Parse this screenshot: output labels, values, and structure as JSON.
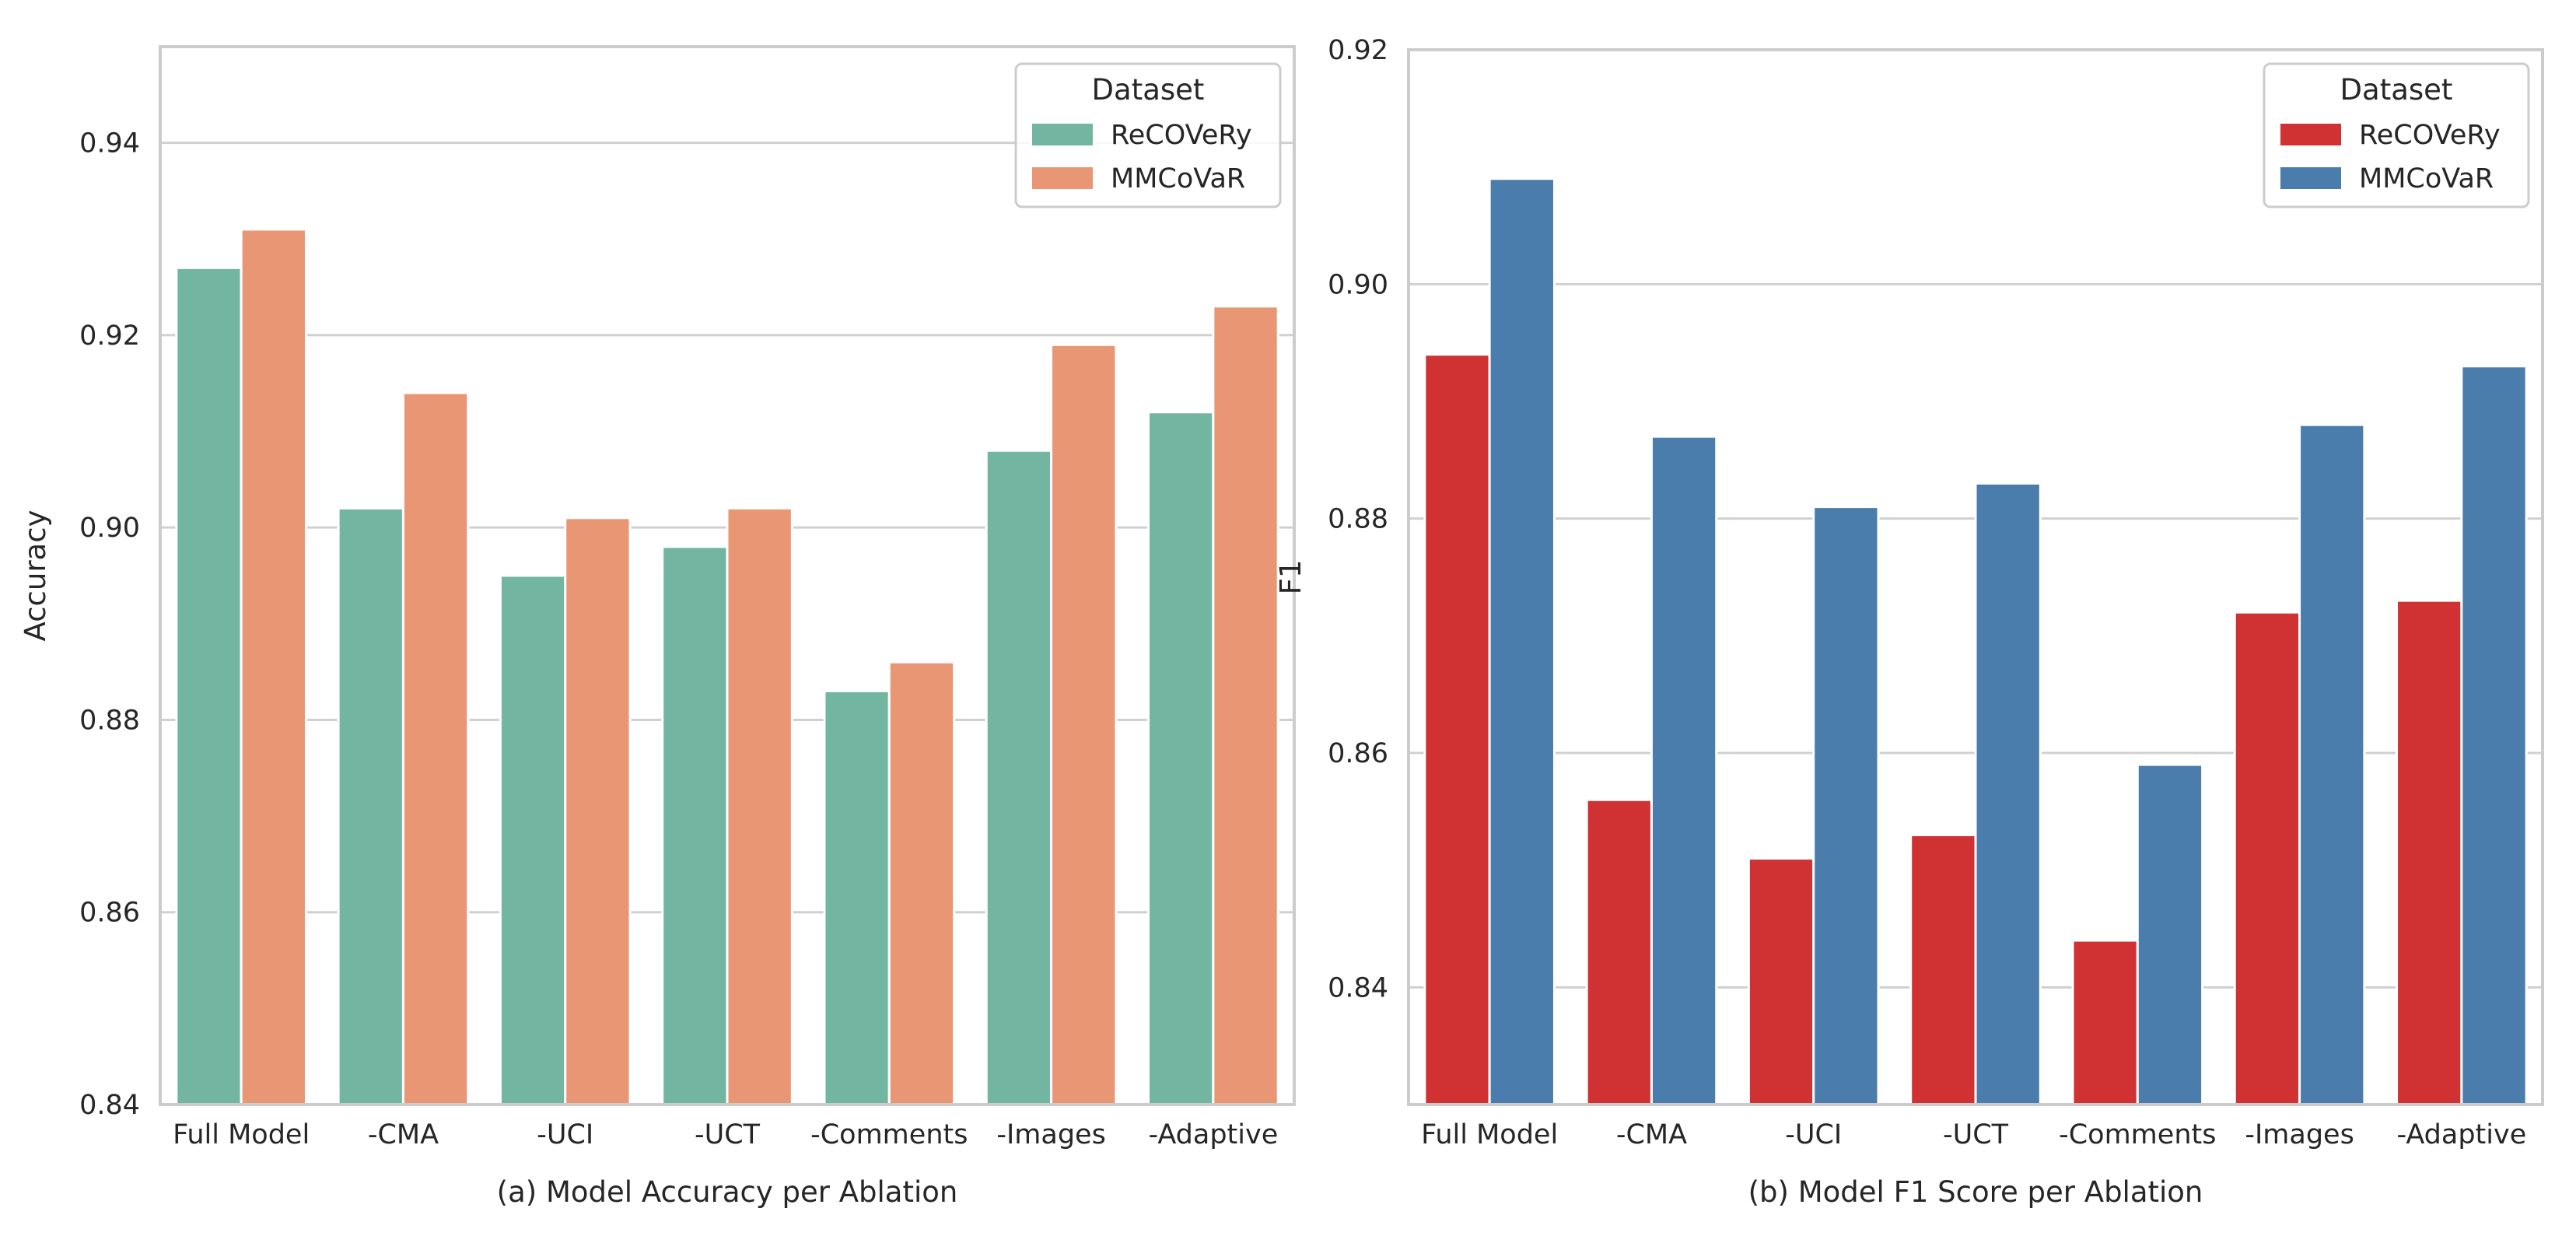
{
  "chart_data": [
    {
      "type": "bar",
      "title": "",
      "xlabel": "(a) Model Accuracy per Ablation",
      "ylabel": "Accuracy",
      "ylim": [
        0.84,
        0.95
      ],
      "yticks": [
        0.84,
        0.86,
        0.88,
        0.9,
        0.92,
        0.94
      ],
      "ytick_labels": [
        "0.84",
        "0.86",
        "0.88",
        "0.90",
        "0.92",
        "0.94"
      ],
      "grid": true,
      "legend_title": "Dataset",
      "legend_position": "top-right",
      "categories": [
        "Full Model",
        "-CMA",
        "-UCI",
        "-UCT",
        "-Comments",
        "-Images",
        "-Adaptive"
      ],
      "series": [
        {
          "name": "ReCOVeRy",
          "color": "#72b6a1",
          "values": [
            0.927,
            0.902,
            0.895,
            0.898,
            0.883,
            0.908,
            0.912
          ]
        },
        {
          "name": "MMCoVaR",
          "color": "#e99675",
          "values": [
            0.931,
            0.914,
            0.901,
            0.902,
            0.886,
            0.919,
            0.923
          ]
        }
      ]
    },
    {
      "type": "bar",
      "title": "",
      "xlabel": "(b) Model F1 Score per Ablation",
      "ylabel": "F1",
      "ylim": [
        0.83,
        0.92
      ],
      "yticks": [
        0.84,
        0.86,
        0.88,
        0.9,
        0.92
      ],
      "ytick_labels": [
        "0.84",
        "0.86",
        "0.88",
        "0.90",
        "0.92"
      ],
      "grid": true,
      "legend_title": "Dataset",
      "legend_position": "top-right",
      "categories": [
        "Full Model",
        "-CMA",
        "-UCI",
        "-UCT",
        "-Comments",
        "-Images",
        "-Adaptive"
      ],
      "series": [
        {
          "name": "ReCOVeRy",
          "color": "#d03234",
          "values": [
            0.894,
            0.856,
            0.851,
            0.853,
            0.844,
            0.872,
            0.873
          ]
        },
        {
          "name": "MMCoVaR",
          "color": "#4a7dac",
          "values": [
            0.909,
            0.887,
            0.881,
            0.883,
            0.859,
            0.888,
            0.893
          ]
        }
      ]
    }
  ]
}
